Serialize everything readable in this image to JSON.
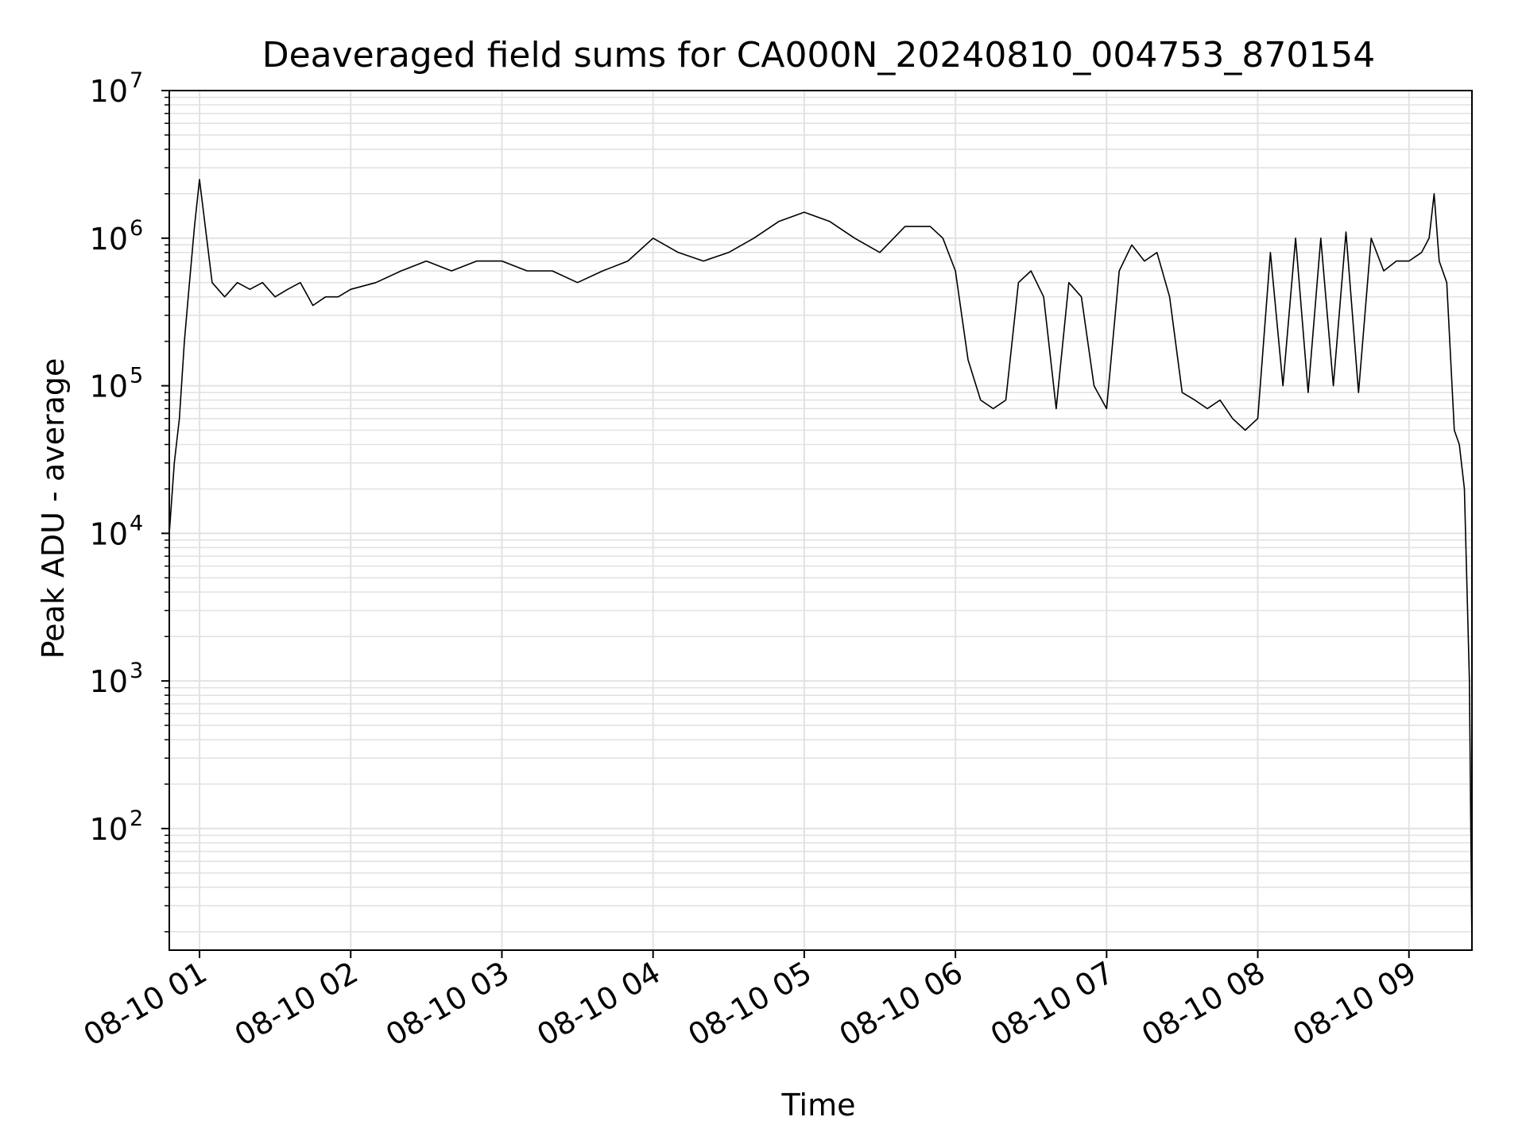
{
  "chart_data": {
    "type": "line",
    "title": "Deaveraged field sums for CA000N_20240810_004753_870154",
    "xlabel": "Time",
    "ylabel": "Peak ADU - average",
    "x_ticks": [
      "08-10 01",
      "08-10 02",
      "08-10 03",
      "08-10 04",
      "08-10 05",
      "08-10 06",
      "08-10 07",
      "08-10 08",
      "08-10 09"
    ],
    "y_ticks": [
      {
        "base": "10",
        "exp": "2",
        "value": 100
      },
      {
        "base": "10",
        "exp": "3",
        "value": 1000
      },
      {
        "base": "10",
        "exp": "4",
        "value": 10000
      },
      {
        "base": "10",
        "exp": "5",
        "value": 100000
      },
      {
        "base": "10",
        "exp": "6",
        "value": 1000000
      },
      {
        "base": "10",
        "exp": "7",
        "value": 10000000
      }
    ],
    "x_range": [
      "2024-08-10 00:48",
      "2024-08-10 09:25"
    ],
    "ylim": [
      15,
      10000000
    ],
    "yscale": "log",
    "grid": "major and minor",
    "line_color": "#000000",
    "series": [
      {
        "x": [
          "2024-08-10 00:48",
          "2024-08-10 00:50",
          "2024-08-10 00:52",
          "2024-08-10 00:54",
          "2024-08-10 00:56",
          "2024-08-10 00:58",
          "2024-08-10 01:00",
          "2024-08-10 01:05",
          "2024-08-10 01:10",
          "2024-08-10 01:15",
          "2024-08-10 01:20",
          "2024-08-10 01:25",
          "2024-08-10 01:30",
          "2024-08-10 01:35",
          "2024-08-10 01:40",
          "2024-08-10 01:45",
          "2024-08-10 01:50",
          "2024-08-10 01:55",
          "2024-08-10 02:00",
          "2024-08-10 02:10",
          "2024-08-10 02:20",
          "2024-08-10 02:30",
          "2024-08-10 02:40",
          "2024-08-10 02:50",
          "2024-08-10 03:00",
          "2024-08-10 03:10",
          "2024-08-10 03:20",
          "2024-08-10 03:30",
          "2024-08-10 03:40",
          "2024-08-10 03:50",
          "2024-08-10 04:00",
          "2024-08-10 04:10",
          "2024-08-10 04:20",
          "2024-08-10 04:30",
          "2024-08-10 04:40",
          "2024-08-10 04:50",
          "2024-08-10 05:00",
          "2024-08-10 05:10",
          "2024-08-10 05:20",
          "2024-08-10 05:30",
          "2024-08-10 05:40",
          "2024-08-10 05:50",
          "2024-08-10 05:55",
          "2024-08-10 06:00",
          "2024-08-10 06:05",
          "2024-08-10 06:10",
          "2024-08-10 06:15",
          "2024-08-10 06:20",
          "2024-08-10 06:25",
          "2024-08-10 06:30",
          "2024-08-10 06:35",
          "2024-08-10 06:40",
          "2024-08-10 06:45",
          "2024-08-10 06:50",
          "2024-08-10 06:55",
          "2024-08-10 07:00",
          "2024-08-10 07:05",
          "2024-08-10 07:10",
          "2024-08-10 07:15",
          "2024-08-10 07:20",
          "2024-08-10 07:25",
          "2024-08-10 07:30",
          "2024-08-10 07:35",
          "2024-08-10 07:40",
          "2024-08-10 07:45",
          "2024-08-10 07:50",
          "2024-08-10 07:55",
          "2024-08-10 08:00",
          "2024-08-10 08:05",
          "2024-08-10 08:10",
          "2024-08-10 08:15",
          "2024-08-10 08:20",
          "2024-08-10 08:25",
          "2024-08-10 08:30",
          "2024-08-10 08:35",
          "2024-08-10 08:40",
          "2024-08-10 08:45",
          "2024-08-10 08:50",
          "2024-08-10 08:55",
          "2024-08-10 09:00",
          "2024-08-10 09:05",
          "2024-08-10 09:08",
          "2024-08-10 09:10",
          "2024-08-10 09:12",
          "2024-08-10 09:15",
          "2024-08-10 09:18",
          "2024-08-10 09:20",
          "2024-08-10 09:22",
          "2024-08-10 09:24",
          "2024-08-10 09:25"
        ],
        "y": [
          10000,
          30000,
          60000,
          200000,
          500000,
          1200000,
          2500000,
          500000,
          400000,
          500000,
          450000,
          500000,
          400000,
          450000,
          500000,
          350000,
          400000,
          400000,
          450000,
          500000,
          600000,
          700000,
          600000,
          700000,
          700000,
          600000,
          600000,
          500000,
          600000,
          700000,
          1000000,
          800000,
          700000,
          800000,
          1000000,
          1300000,
          1500000,
          1300000,
          1000000,
          800000,
          1200000,
          1200000,
          1000000,
          600000,
          150000,
          80000,
          70000,
          80000,
          500000,
          600000,
          400000,
          70000,
          500000,
          400000,
          100000,
          70000,
          600000,
          900000,
          700000,
          800000,
          400000,
          90000,
          80000,
          70000,
          80000,
          60000,
          50000,
          60000,
          800000,
          100000,
          1000000,
          90000,
          1000000,
          100000,
          1100000,
          90000,
          1000000,
          600000,
          700000,
          700000,
          800000,
          1000000,
          2000000,
          700000,
          500000,
          50000,
          40000,
          20000,
          1000,
          15
        ]
      }
    ]
  }
}
